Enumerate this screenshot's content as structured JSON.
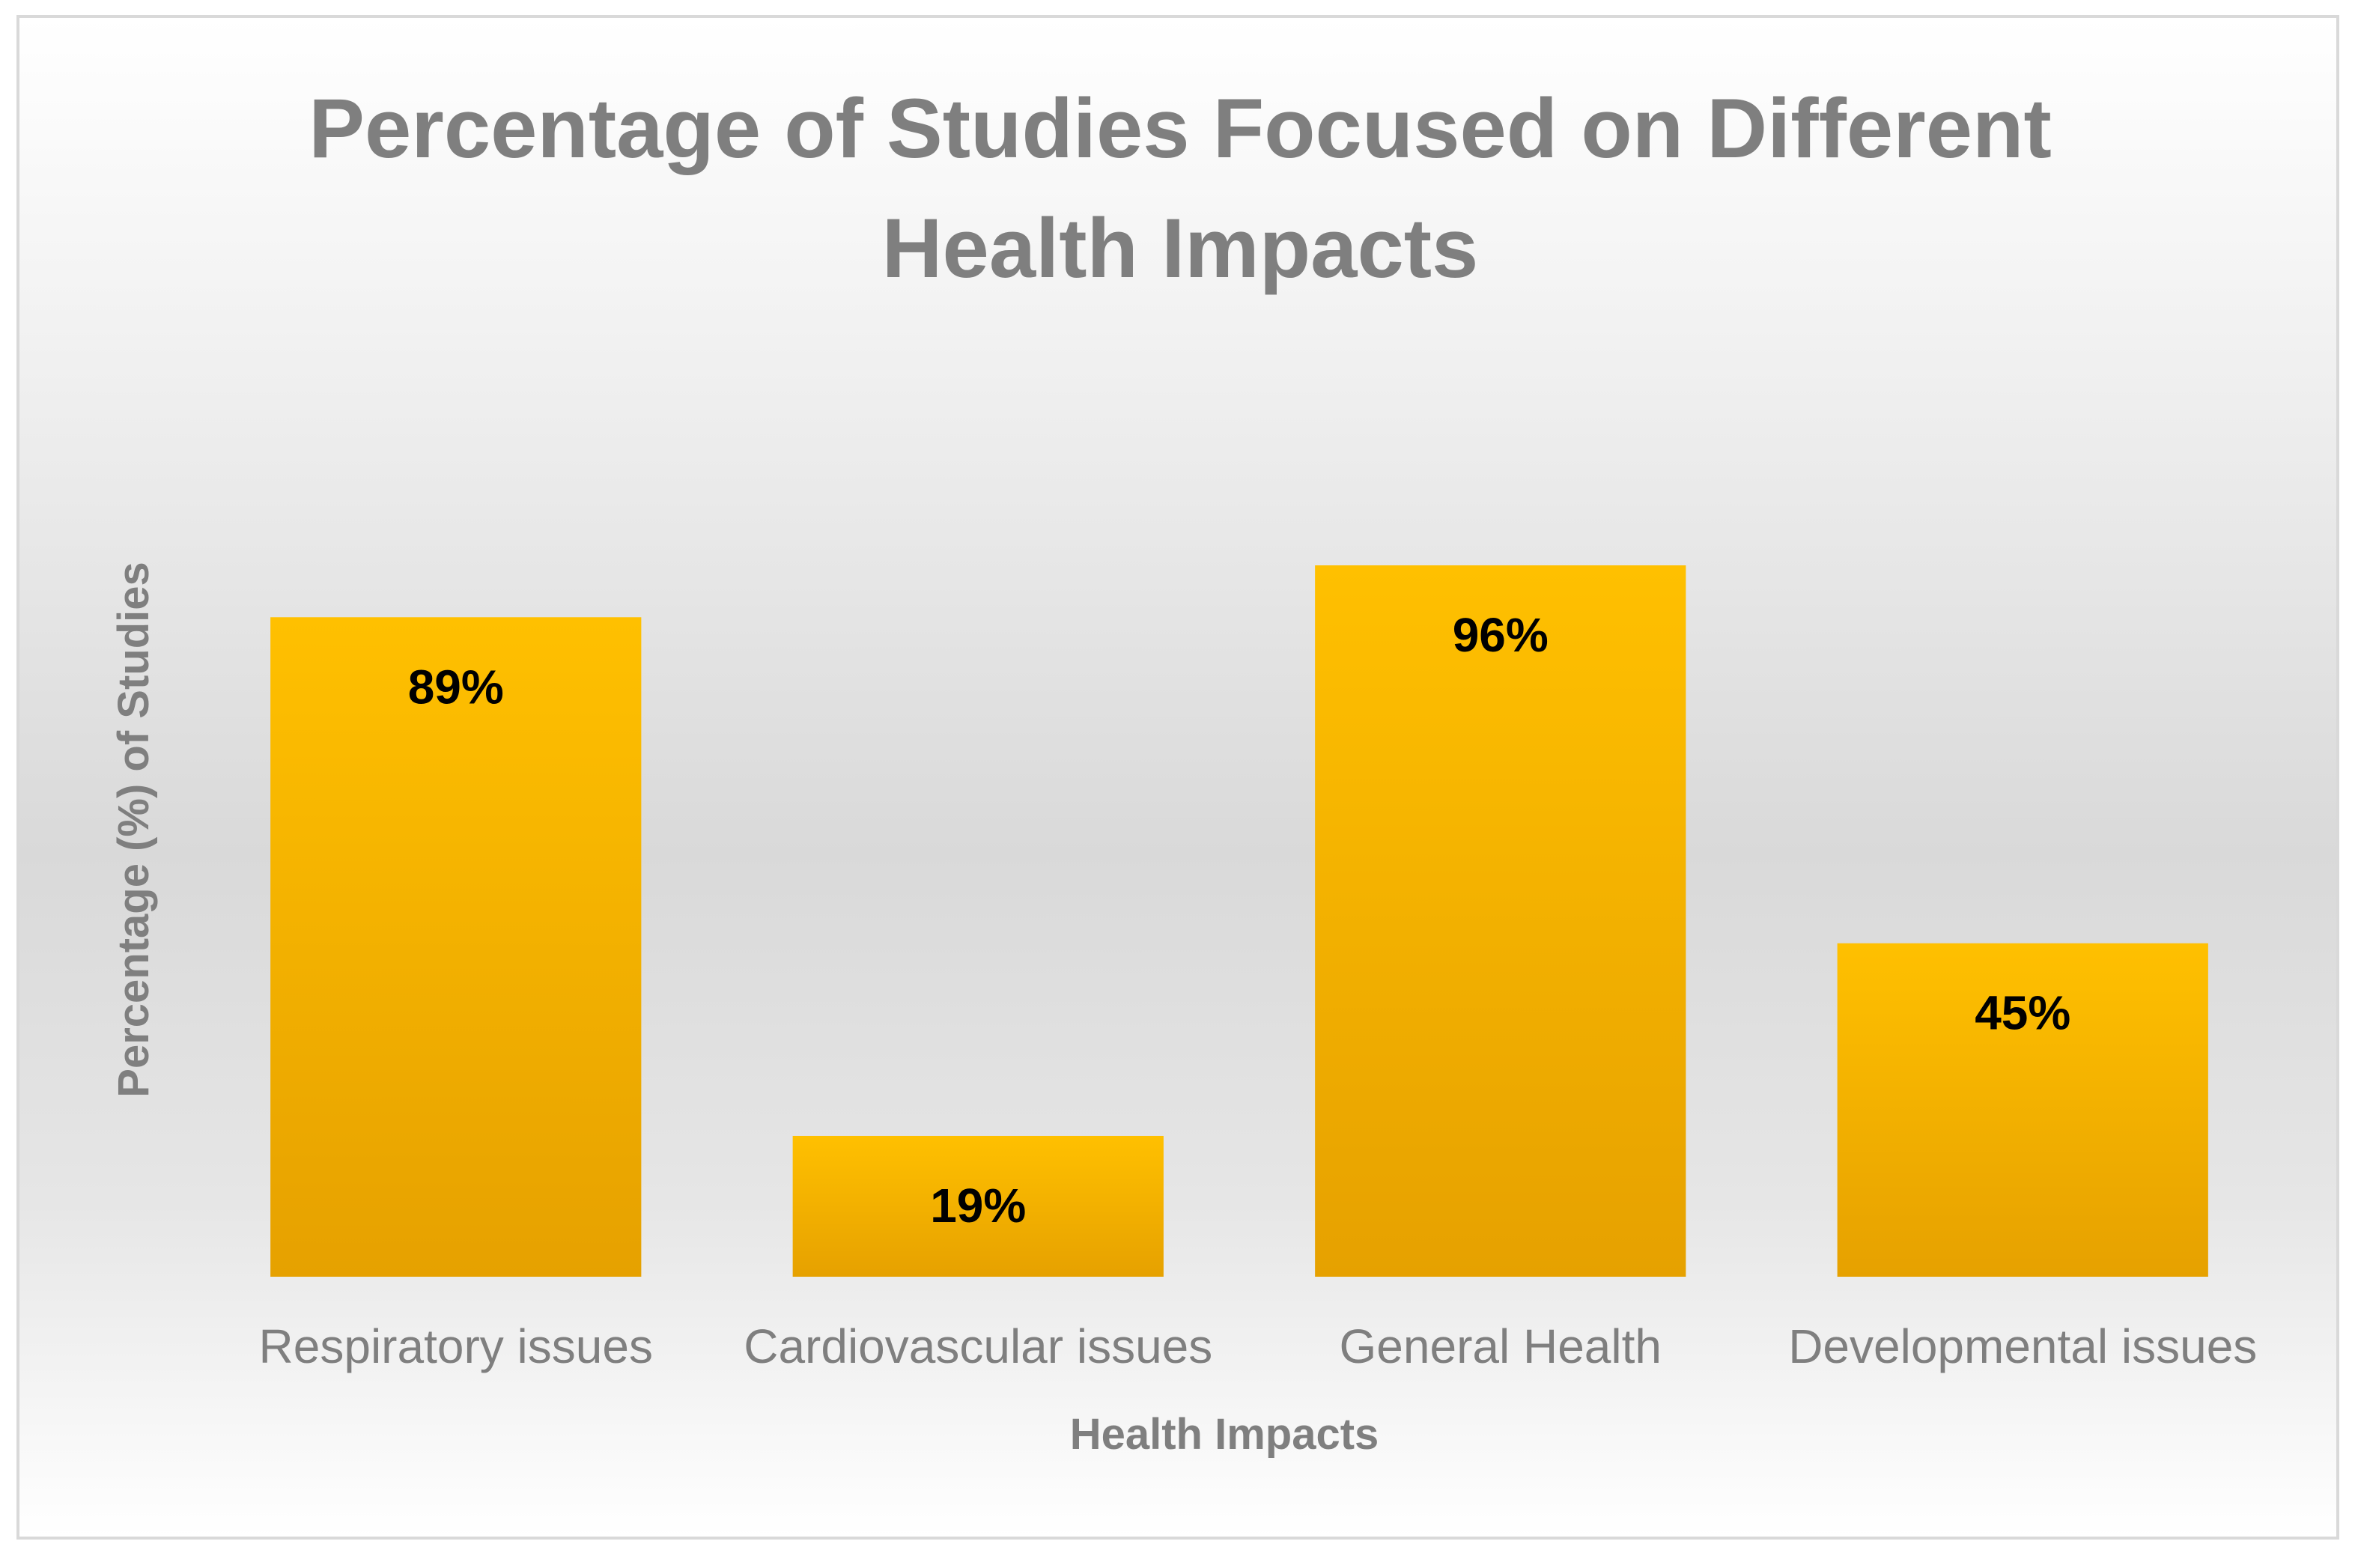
{
  "chart_data": {
    "type": "bar",
    "title_lines": [
      "Percentage of Studies Focused on Different",
      "Health Impacts"
    ],
    "xlabel": "Health Impacts",
    "ylabel": "Percentage (%) of Studies",
    "categories": [
      "Respiratory issues",
      "Cardiovascular issues",
      "General Health",
      "Developmental issues"
    ],
    "values": [
      89,
      19,
      96,
      45
    ],
    "data_labels": [
      "89%",
      "19%",
      "96%",
      "45%"
    ],
    "ylim": [
      0,
      100
    ],
    "grid": false,
    "legend": "none",
    "colors": {
      "bar_top": "#FFC000",
      "bar_bottom": "#E6A100",
      "text": "#7f7f7f",
      "frame": "#d9d9d9"
    }
  }
}
